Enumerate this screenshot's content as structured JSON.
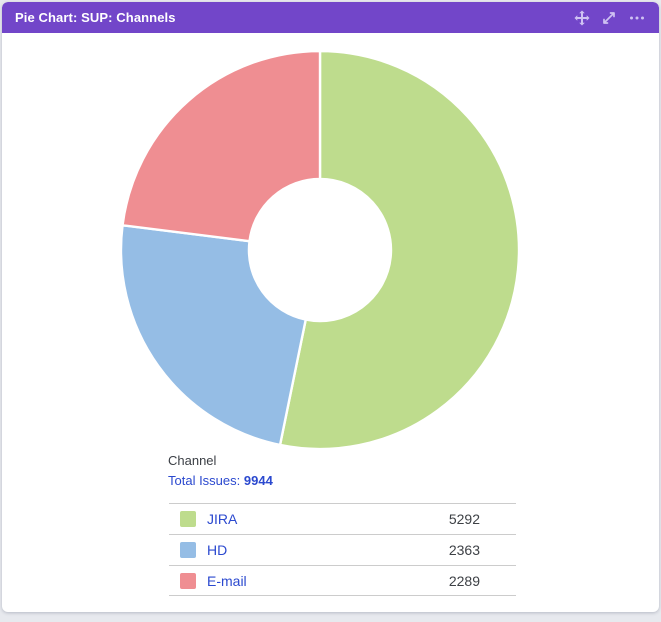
{
  "theme": {
    "header_background": "#7246c9",
    "header_icon_color": "#cfc2f2",
    "link_blue": "#2b49cf",
    "page_background": "#e7e9ee",
    "table_border": "#cccccc"
  },
  "header": {
    "title": "Pie Chart: SUP: Channels",
    "icons": [
      "move-icon",
      "expand-icon",
      "more-icon"
    ]
  },
  "summary": {
    "group_label": "Channel",
    "total_label": "Total Issues: ",
    "total_value": "9944"
  },
  "chart_data": {
    "type": "pie",
    "style": "donut",
    "title": "Pie Chart: SUP: Channels",
    "start_angle_deg": 0,
    "direction": "clockwise",
    "categories": [
      "JIRA",
      "HD",
      "E-mail"
    ],
    "values": [
      5292,
      2363,
      2289
    ],
    "colors": [
      "#bedc8d",
      "#95bde5",
      "#ef8e92"
    ],
    "total": 9944,
    "inner_radius_ratio": 0.357,
    "legend_position": "bottom",
    "legend_columns": [
      "category",
      "value"
    ]
  }
}
